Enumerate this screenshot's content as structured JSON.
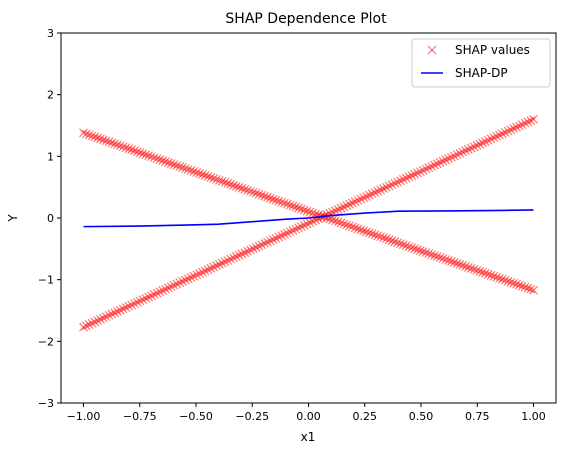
{
  "chart_data": {
    "type": "scatter",
    "title": "SHAP Dependence Plot",
    "xlabel": "x1",
    "ylabel": "Y",
    "xlim": [
      -1.1,
      1.1
    ],
    "ylim": [
      -3,
      3
    ],
    "xticks": [
      -1.0,
      -0.75,
      -0.5,
      -0.25,
      0.0,
      0.25,
      0.5,
      0.75,
      1.0
    ],
    "xtick_labels": [
      "−1.00",
      "−0.75",
      "−0.50",
      "−0.25",
      "0.00",
      "0.25",
      "0.50",
      "0.75",
      "1.00"
    ],
    "yticks": [
      -3,
      -2,
      -1,
      0,
      1,
      2,
      3
    ],
    "ytick_labels": [
      "−3",
      "−2",
      "−1",
      "0",
      "1",
      "2",
      "3"
    ],
    "grid": false,
    "legend_position": "top-right",
    "series": [
      {
        "name": "SHAP values",
        "kind": "scatter",
        "marker": "x",
        "color": "#ff0000",
        "segments": [
          {
            "x_range": [
              -1.0,
              1.0
            ],
            "y_at_start": -1.77,
            "y_at_end": 1.6
          },
          {
            "x_range": [
              -1.0,
              1.0
            ],
            "y_at_start": 1.38,
            "y_at_end": -1.17
          }
        ]
      },
      {
        "name": "SHAP-DP",
        "kind": "line",
        "color": "#0000ff",
        "x": [
          -1.0,
          -0.75,
          -0.5,
          -0.4,
          -0.25,
          -0.1,
          0.0,
          0.1,
          0.25,
          0.4,
          0.6,
          0.8,
          1.0
        ],
        "y": [
          -0.14,
          -0.13,
          -0.11,
          -0.1,
          -0.06,
          -0.02,
          0.0,
          0.04,
          0.08,
          0.11,
          0.115,
          0.12,
          0.13
        ]
      }
    ]
  }
}
